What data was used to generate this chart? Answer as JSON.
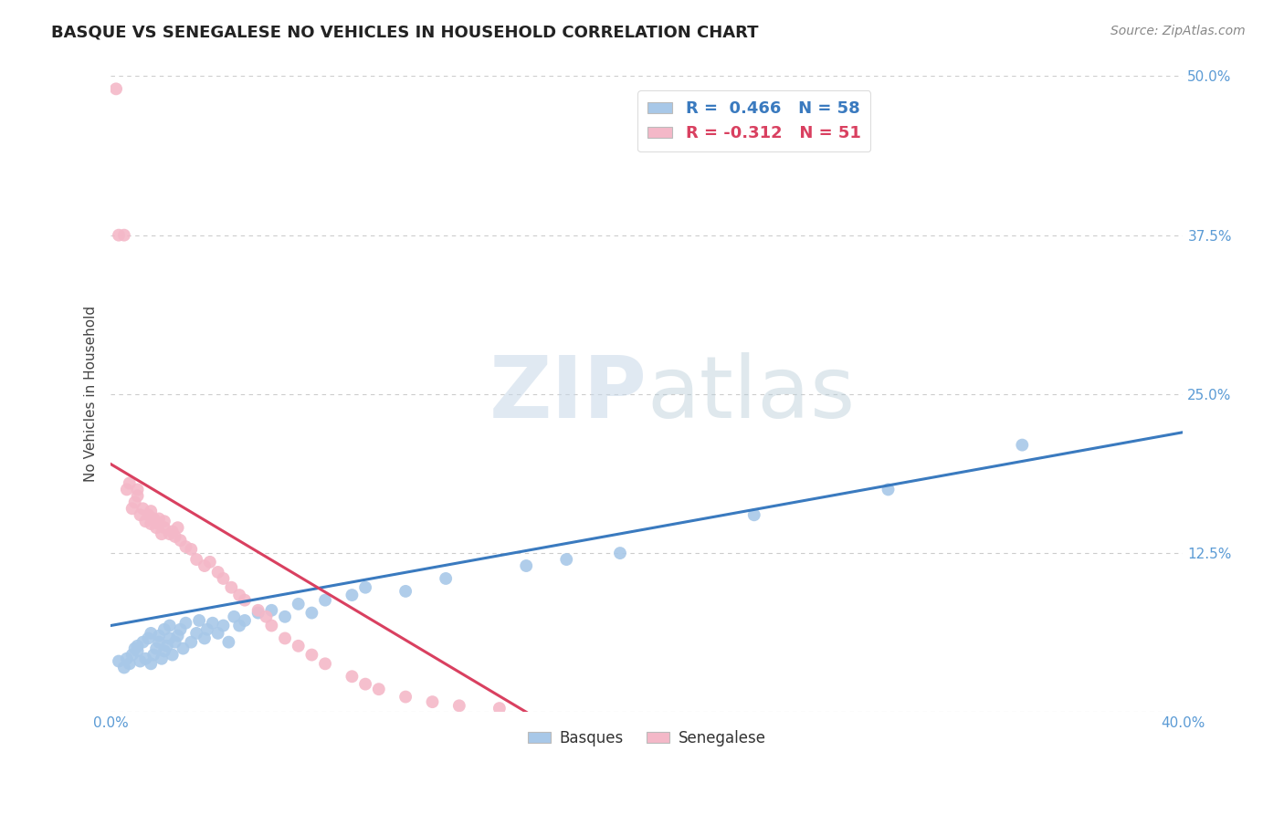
{
  "title": "BASQUE VS SENEGALESE NO VEHICLES IN HOUSEHOLD CORRELATION CHART",
  "source": "Source: ZipAtlas.com",
  "ylabel": "No Vehicles in Household",
  "xlim": [
    0.0,
    0.4
  ],
  "ylim": [
    0.0,
    0.5
  ],
  "xticks": [
    0.0,
    0.08,
    0.16,
    0.24,
    0.32,
    0.4
  ],
  "xticklabels": [
    "0.0%",
    "",
    "",
    "",
    "",
    "40.0%"
  ],
  "yticks": [
    0.0,
    0.125,
    0.25,
    0.375,
    0.5
  ],
  "yticklabels": [
    "",
    "12.5%",
    "25.0%",
    "37.5%",
    "50.0%"
  ],
  "blue_R": 0.466,
  "blue_N": 58,
  "pink_R": -0.312,
  "pink_N": 51,
  "blue_color": "#a8c8e8",
  "pink_color": "#f4b8c8",
  "blue_line_color": "#3a7abf",
  "pink_line_color": "#d94060",
  "legend_label_blue": "Basques",
  "legend_label_pink": "Senegalese",
  "watermark_zip": "ZIP",
  "watermark_atlas": "atlas",
  "title_fontsize": 13,
  "axis_tick_color": "#5b9bd5",
  "grid_color": "#cccccc",
  "blue_x": [
    0.003,
    0.005,
    0.006,
    0.007,
    0.008,
    0.009,
    0.01,
    0.01,
    0.011,
    0.012,
    0.013,
    0.014,
    0.015,
    0.015,
    0.016,
    0.017,
    0.018,
    0.018,
    0.019,
    0.02,
    0.02,
    0.021,
    0.022,
    0.022,
    0.023,
    0.024,
    0.025,
    0.026,
    0.027,
    0.028,
    0.03,
    0.032,
    0.033,
    0.035,
    0.036,
    0.038,
    0.04,
    0.042,
    0.044,
    0.046,
    0.048,
    0.05,
    0.055,
    0.06,
    0.065,
    0.07,
    0.075,
    0.08,
    0.09,
    0.095,
    0.11,
    0.125,
    0.155,
    0.17,
    0.19,
    0.24,
    0.29,
    0.34
  ],
  "blue_y": [
    0.04,
    0.035,
    0.042,
    0.038,
    0.045,
    0.05,
    0.048,
    0.052,
    0.04,
    0.055,
    0.042,
    0.058,
    0.038,
    0.062,
    0.045,
    0.05,
    0.055,
    0.06,
    0.042,
    0.048,
    0.065,
    0.052,
    0.058,
    0.068,
    0.045,
    0.055,
    0.06,
    0.065,
    0.05,
    0.07,
    0.055,
    0.062,
    0.072,
    0.058,
    0.065,
    0.07,
    0.062,
    0.068,
    0.055,
    0.075,
    0.068,
    0.072,
    0.078,
    0.08,
    0.075,
    0.085,
    0.078,
    0.088,
    0.092,
    0.098,
    0.095,
    0.105,
    0.115,
    0.12,
    0.125,
    0.155,
    0.175,
    0.21
  ],
  "pink_x": [
    0.002,
    0.003,
    0.005,
    0.006,
    0.007,
    0.008,
    0.009,
    0.01,
    0.01,
    0.011,
    0.012,
    0.013,
    0.014,
    0.015,
    0.015,
    0.016,
    0.017,
    0.018,
    0.018,
    0.019,
    0.02,
    0.02,
    0.022,
    0.023,
    0.024,
    0.025,
    0.026,
    0.028,
    0.03,
    0.032,
    0.035,
    0.037,
    0.04,
    0.042,
    0.045,
    0.048,
    0.05,
    0.055,
    0.058,
    0.06,
    0.065,
    0.07,
    0.075,
    0.08,
    0.09,
    0.095,
    0.1,
    0.11,
    0.12,
    0.13,
    0.145
  ],
  "pink_y": [
    0.49,
    0.375,
    0.375,
    0.175,
    0.18,
    0.16,
    0.165,
    0.17,
    0.175,
    0.155,
    0.16,
    0.15,
    0.155,
    0.148,
    0.158,
    0.152,
    0.145,
    0.148,
    0.152,
    0.14,
    0.145,
    0.15,
    0.14,
    0.142,
    0.138,
    0.145,
    0.135,
    0.13,
    0.128,
    0.12,
    0.115,
    0.118,
    0.11,
    0.105,
    0.098,
    0.092,
    0.088,
    0.08,
    0.075,
    0.068,
    0.058,
    0.052,
    0.045,
    0.038,
    0.028,
    0.022,
    0.018,
    0.012,
    0.008,
    0.005,
    0.003
  ],
  "blue_line_x0": 0.0,
  "blue_line_y0": 0.068,
  "blue_line_x1": 0.4,
  "blue_line_y1": 0.22,
  "pink_line_x0": 0.0,
  "pink_line_y0": 0.195,
  "pink_line_x1": 0.155,
  "pink_line_y1": 0.0
}
